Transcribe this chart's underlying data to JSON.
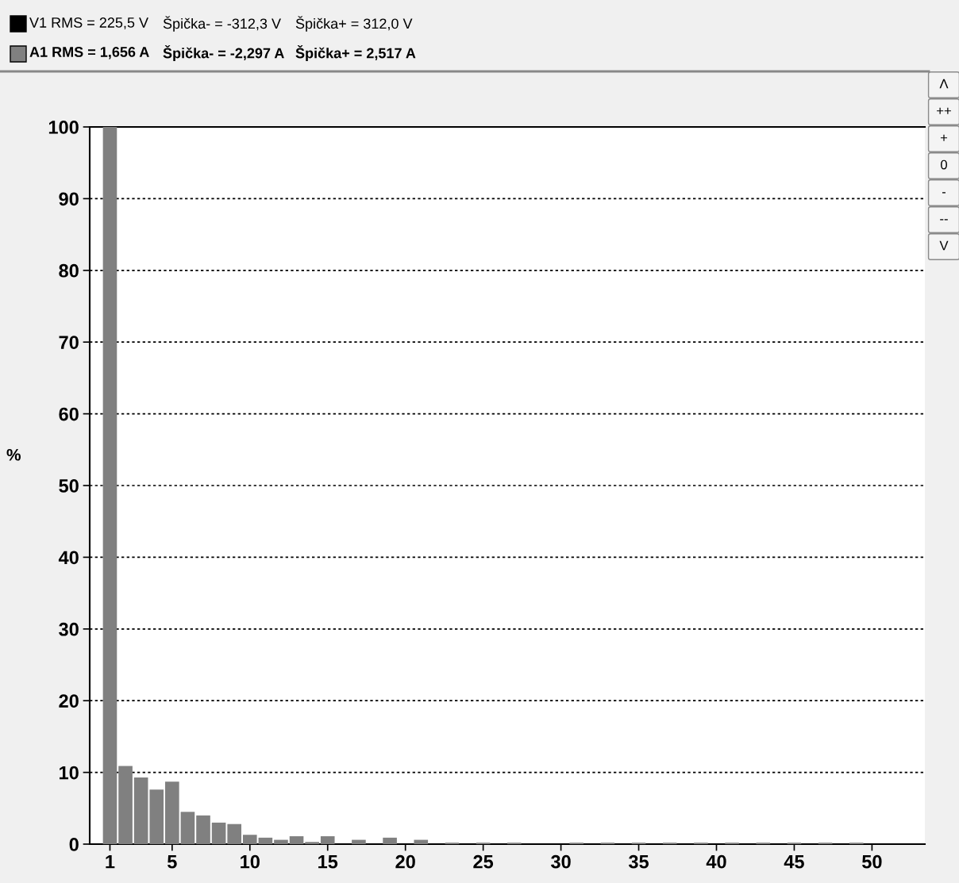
{
  "chart_data": {
    "type": "bar",
    "x": [
      1,
      2,
      3,
      4,
      5,
      6,
      7,
      8,
      9,
      10,
      11,
      12,
      13,
      14,
      15,
      16,
      17,
      18,
      19,
      20,
      21,
      22,
      23,
      24,
      25,
      26,
      27,
      28,
      29,
      30,
      31,
      32,
      33,
      34,
      35,
      36,
      37,
      38,
      39,
      40,
      41,
      42,
      43,
      44,
      45,
      46,
      47,
      48,
      49
    ],
    "values": [
      100,
      10.9,
      9.3,
      7.6,
      8.7,
      4.5,
      4.0,
      3.0,
      2.8,
      1.3,
      0.9,
      0.6,
      1.1,
      0.3,
      1.1,
      0,
      0.6,
      0,
      0.9,
      0,
      0.6,
      0,
      0.2,
      0,
      0.2,
      0,
      0.2,
      0,
      0,
      0,
      0.2,
      0,
      0.2,
      0,
      0.2,
      0,
      0.2,
      0,
      0.2,
      0,
      0.2,
      0,
      0.2,
      0,
      0.2,
      0,
      0.2,
      0,
      0.2
    ],
    "color": "#808080",
    "ylabel": "%",
    "xlim": [
      -0.3,
      53.4
    ],
    "ylim": [
      0,
      100
    ],
    "xticks": [
      1,
      5,
      10,
      15,
      20,
      25,
      30,
      35,
      40,
      45,
      50
    ],
    "yticks": [
      0,
      10,
      20,
      30,
      40,
      50,
      60,
      70,
      80,
      90,
      100
    ],
    "grid": "y",
    "annotations": [
      "V1 RMS = 225,5 V",
      "Špička- = -312,3 V",
      "Špička+ = 312,0 V",
      "A1 RMS = 1,656 A",
      "Špička- = -2,297 A",
      "Špička+ = 2,517 A",
      "Λ",
      "++",
      "+",
      "0",
      "-",
      "--",
      "V"
    ]
  }
}
